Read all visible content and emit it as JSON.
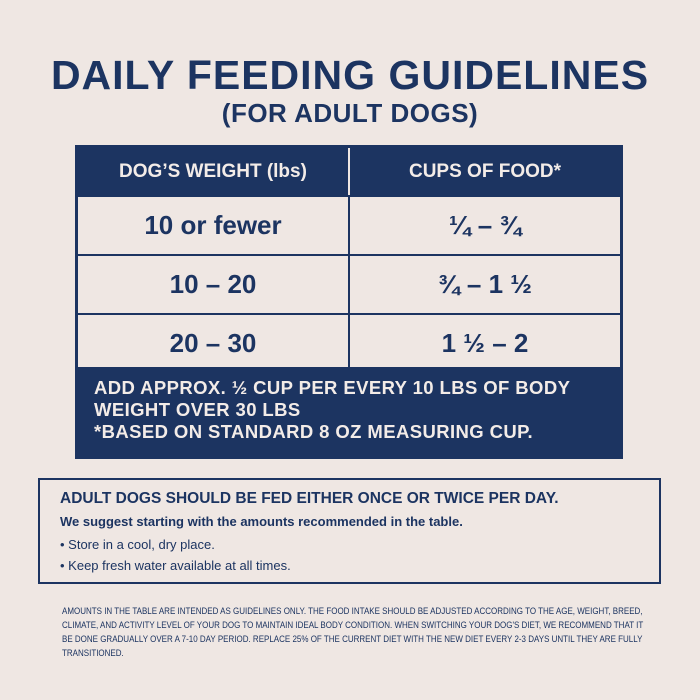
{
  "title": "DAILY FEEDING GUIDELINES",
  "subtitle": "(FOR ADULT DOGS)",
  "table": {
    "headers": [
      "DOG’S WEIGHT (lbs)",
      "CUPS OF FOOD*"
    ],
    "rows": [
      [
        "10 or fewer",
        "¼ – ¾"
      ],
      [
        "10 – 20",
        "¾ – 1 ½"
      ],
      [
        "20 – 30",
        "1 ½ – 2"
      ]
    ],
    "note1": "ADD APPROX. ½ CUP PER EVERY 10 LBS OF BODY WEIGHT OVER 30 LBS",
    "note2": "*BASED ON STANDARD 8 OZ MEASURING CUP."
  },
  "box": {
    "heading": "ADULT DOGS SHOULD BE FED EITHER ONCE OR TWICE PER DAY.",
    "sub": "We suggest starting with the amounts recommended in the table.",
    "bullets": [
      "Store in a cool, dry place.",
      "Keep fresh water available at all times."
    ]
  },
  "fine_print": "AMOUNTS IN THE TABLE ARE INTENDED AS GUIDELINES ONLY. THE FOOD INTAKE SHOULD BE ADJUSTED ACCORDING TO THE AGE, WEIGHT, BREED, CLIMATE, AND ACTIVITY LEVEL OF YOUR DOG TO MAINTAIN IDEAL BODY CONDITION. WHEN SWITCHING YOUR DOG'S DIET, WE RECOMMEND THAT IT BE DONE GRADUALLY OVER A 7-10 DAY PERIOD. REPLACE 25% OF THE CURRENT DIET WITH THE NEW DIET EVERY 2-3 DAYS UNTIL THEY ARE FULLY TRANSITIONED.",
  "colors": {
    "navy": "#1c3461",
    "background": "#efe7e3"
  }
}
